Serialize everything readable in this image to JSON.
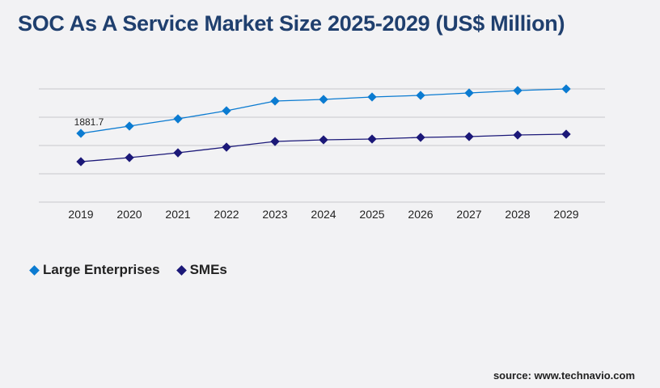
{
  "title": "SOC As A Service Market Size 2025-2029 (US$ Million)",
  "source": "source: www.technavio.com",
  "chart_data": {
    "type": "line",
    "title": "SOC As A Service Market Size 2025-2029 (US$ Million)",
    "categories": [
      "2019",
      "2020",
      "2021",
      "2022",
      "2023",
      "2024",
      "2025",
      "2026",
      "2027",
      "2028",
      "2029"
    ],
    "series": [
      {
        "name": "Large Enterprises",
        "color": "#0b7bd1",
        "values": [
          1881.7,
          2081,
          2280,
          2502,
          2768,
          2812,
          2878,
          2923,
          2989,
          3055,
          3100
        ],
        "labels": [
          "1881.7",
          "",
          "",
          "",
          "",
          "",
          "",
          "",
          "",
          "",
          ""
        ]
      },
      {
        "name": "SMEs",
        "color": "#1b1878",
        "values": [
          1107,
          1218,
          1350,
          1505,
          1660,
          1705,
          1727,
          1771,
          1793,
          1838,
          1860
        ]
      }
    ],
    "ylim": [
      0,
      3100
    ],
    "y_axis_labels_shown": false,
    "grid": true,
    "legend": "bottom-left"
  }
}
